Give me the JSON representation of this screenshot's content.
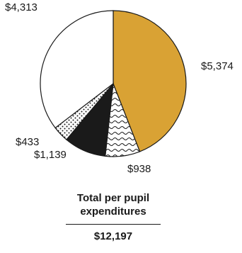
{
  "chart_data": {
    "type": "pie",
    "slices": [
      {
        "label": "$5,374",
        "value": 5374,
        "color": "#D9A234",
        "pattern": "solid"
      },
      {
        "label": "$938",
        "value": 938,
        "color": "#ffffff",
        "pattern": "wavy"
      },
      {
        "label": "$1,139",
        "value": 1139,
        "color": "#1a1a1a",
        "pattern": "solid"
      },
      {
        "label": "$433",
        "value": 433,
        "color": "#ffffff",
        "pattern": "dots"
      },
      {
        "label": "$4,313",
        "value": 4313,
        "color": "#ffffff",
        "pattern": "solid"
      }
    ]
  },
  "summary": {
    "title_line1": "Total per pupil",
    "title_line2": "expenditures",
    "total": "$12,197"
  }
}
